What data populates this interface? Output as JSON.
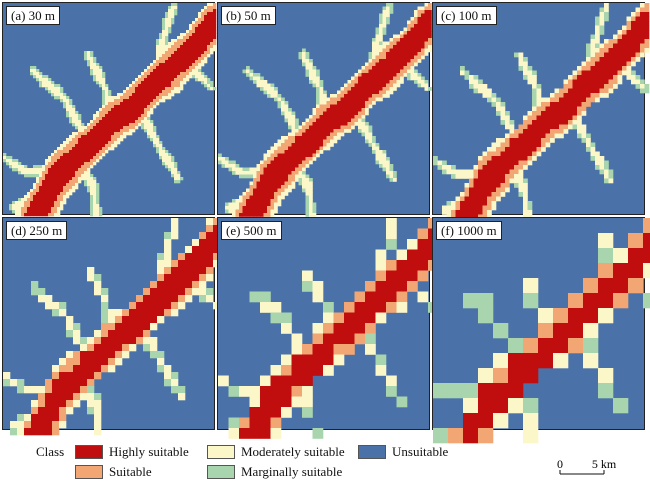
{
  "panels": [
    {
      "label": "(a) 30 m",
      "resolution": 30
    },
    {
      "label": "(b) 50 m",
      "resolution": 50
    },
    {
      "label": "(c) 100 m",
      "resolution": 100
    },
    {
      "label": "(d) 250 m",
      "resolution": 250
    },
    {
      "label": "(e) 500 m",
      "resolution": 500
    },
    {
      "label": "(f) 1000 m",
      "resolution": 1000
    }
  ],
  "legend": {
    "title": "Class",
    "classes": [
      {
        "name": "Highly suitable",
        "color": "#c00d0d"
      },
      {
        "name": "Suitable",
        "color": "#f2a673"
      },
      {
        "name": "Moderately suitable",
        "color": "#fbf7c9"
      },
      {
        "name": "Marginally suitable",
        "color": "#a8d5ae"
      },
      {
        "name": "Unsuitable",
        "color": "#4a71a8"
      }
    ]
  },
  "scalebar": {
    "start": "0",
    "end": "5 km"
  }
}
